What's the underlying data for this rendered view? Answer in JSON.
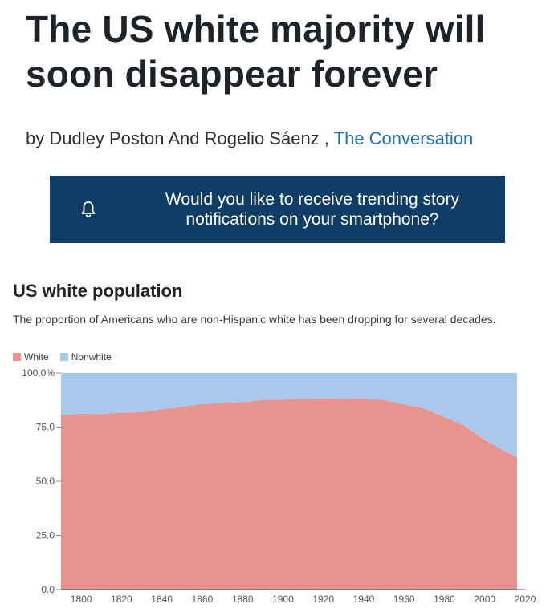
{
  "article": {
    "headline": "The US white majority will soon disappear forever",
    "byline_prefix": "by Dudley Poston And Rogelio Sáenz ,",
    "source": "The Conversation"
  },
  "notification": {
    "icon": "bell-icon",
    "message": "Would you like to receive trending story notifications on your smartphone?"
  },
  "colors": {
    "banner": "#0f3d66",
    "white_series": "#e8938e",
    "nonwhite_series": "#a8c8ec",
    "link": "#1a6fbf"
  },
  "chart_data": {
    "type": "area",
    "title": "US white population",
    "subtitle": "The proportion of Americans who are non-Hispanic white has been dropping for several decades.",
    "legend_placement": "top-left",
    "stacked": true,
    "x": [
      1790,
      1800,
      1810,
      1820,
      1830,
      1840,
      1850,
      1860,
      1870,
      1880,
      1890,
      1900,
      1910,
      1920,
      1930,
      1940,
      1950,
      1960,
      1970,
      1980,
      1990,
      2000,
      2010,
      2016
    ],
    "series": [
      {
        "name": "White",
        "color": "#e8938e",
        "values": [
          80.7,
          81.1,
          81.0,
          81.6,
          81.9,
          83.2,
          84.3,
          85.6,
          86.2,
          86.5,
          87.5,
          87.7,
          88.0,
          88.2,
          88.0,
          88.1,
          87.5,
          85.4,
          83.5,
          79.6,
          75.6,
          69.1,
          63.7,
          61.3
        ]
      },
      {
        "name": "Nonwhite",
        "color": "#a8c8ec",
        "values": [
          19.3,
          18.9,
          19.0,
          18.4,
          18.1,
          16.8,
          15.7,
          14.4,
          13.8,
          13.5,
          12.5,
          12.3,
          12.0,
          11.8,
          12.0,
          11.9,
          12.5,
          14.6,
          16.5,
          20.4,
          24.4,
          30.9,
          36.3,
          38.7
        ]
      }
    ],
    "ylim": [
      0,
      100
    ],
    "xlim": [
      1790,
      2020
    ],
    "y_ticks": [
      {
        "value": 0,
        "label": "0.0"
      },
      {
        "value": 25,
        "label": "25.0"
      },
      {
        "value": 50,
        "label": "50.0"
      },
      {
        "value": 75,
        "label": "75.0"
      },
      {
        "value": 100,
        "label": "100.0%"
      }
    ],
    "x_ticks": [
      1800,
      1820,
      1840,
      1860,
      1880,
      1900,
      1920,
      1940,
      1960,
      1980,
      2000,
      2020
    ],
    "grid": false
  }
}
